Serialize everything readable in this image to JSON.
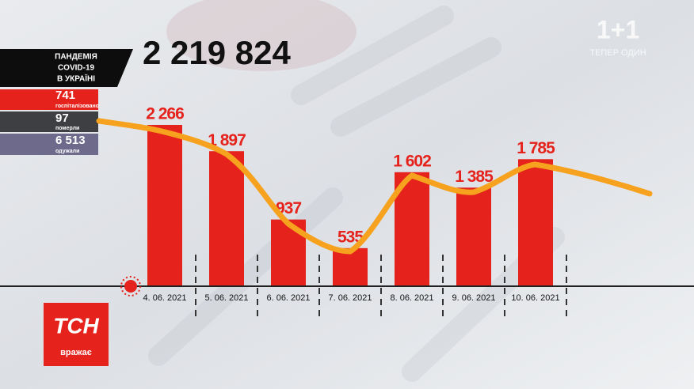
{
  "chart_data": {
    "type": "bar",
    "title": "2 219 824",
    "categories": [
      "4. 06. 2021",
      "5. 06. 2021",
      "6. 06. 2021",
      "7. 06. 2021",
      "8. 06. 2021",
      "9. 06. 2021",
      "10. 06. 2021"
    ],
    "values": [
      2266,
      1897,
      937,
      535,
      1602,
      1385,
      1785
    ],
    "value_labels": [
      "2 266",
      "1 897",
      "937",
      "535",
      "1 602",
      "1 385",
      "1 785"
    ],
    "color": "#e5221b"
  },
  "panel": {
    "heading": [
      "ПАНДЕМІЯ",
      "COVID-19",
      "В УКРАЇНІ"
    ],
    "rows": [
      {
        "number": "741",
        "label": "госпіталізовано"
      },
      {
        "number": "97",
        "label": "померли"
      },
      {
        "number": "6 513",
        "label": "одужали"
      }
    ]
  },
  "logo": {
    "name": "ТСН",
    "tagline": "вражає"
  },
  "channel": {
    "name": "1+1",
    "slogan": "ТЕПЕР ОДИН"
  }
}
